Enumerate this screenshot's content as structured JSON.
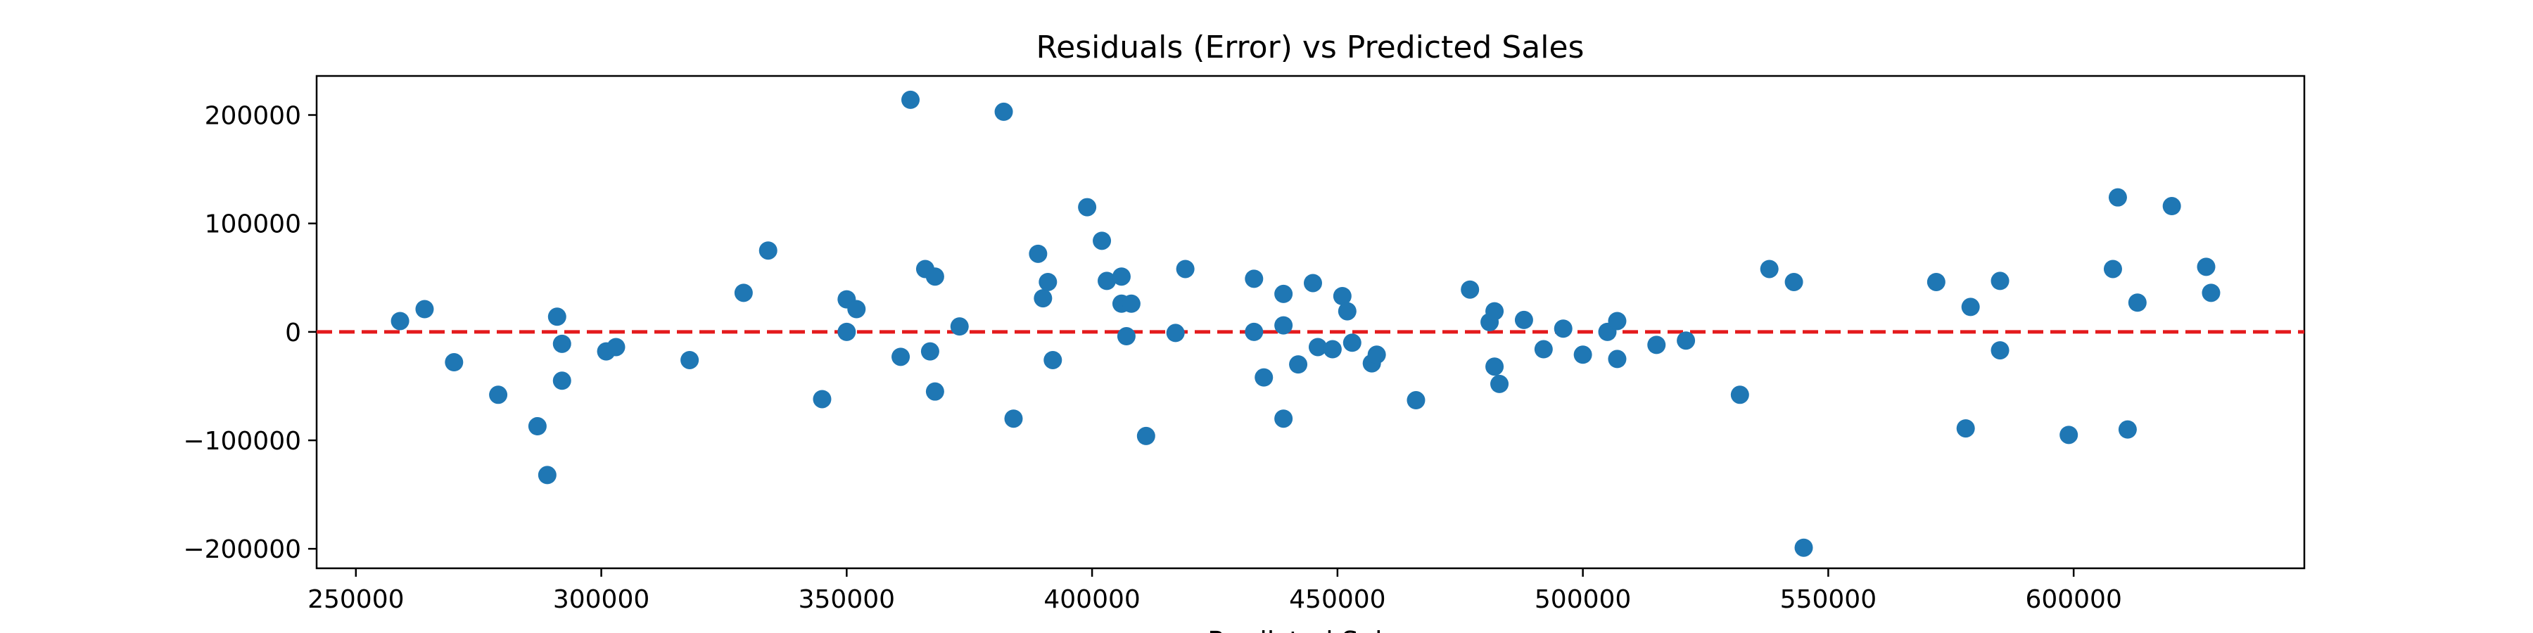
{
  "chart_data": {
    "type": "scatter",
    "title": "Residuals (Error) vs Predicted Sales",
    "xlabel": "Predicted Sales",
    "ylabel": "",
    "xlim": [
      242000,
      647000
    ],
    "ylim": [
      -218000,
      236000
    ],
    "x_ticks": [
      250000,
      300000,
      350000,
      400000,
      450000,
      500000,
      550000,
      600000
    ],
    "x_tick_labels": [
      "250000",
      "300000",
      "350000",
      "400000",
      "450000",
      "500000",
      "550000",
      "600000"
    ],
    "y_ticks": [
      200000,
      100000,
      0,
      -100000,
      -200000
    ],
    "y_tick_labels": [
      "200000",
      "100000",
      "0",
      "−100000",
      "−200000"
    ],
    "grid": false,
    "reference_line": {
      "y": 0,
      "color": "#e41a1c",
      "style": "dashed"
    },
    "marker_color": "#1f77b4",
    "points": [
      {
        "x": 259000,
        "y": 10000
      },
      {
        "x": 264000,
        "y": 21000
      },
      {
        "x": 270000,
        "y": -28000
      },
      {
        "x": 279000,
        "y": -58000
      },
      {
        "x": 287000,
        "y": -87000
      },
      {
        "x": 289000,
        "y": -132000
      },
      {
        "x": 291000,
        "y": 14000
      },
      {
        "x": 292000,
        "y": -11000
      },
      {
        "x": 292000,
        "y": -45000
      },
      {
        "x": 301000,
        "y": -18000
      },
      {
        "x": 303000,
        "y": -14000
      },
      {
        "x": 318000,
        "y": -26000
      },
      {
        "x": 329000,
        "y": 36000
      },
      {
        "x": 334000,
        "y": 75000
      },
      {
        "x": 345000,
        "y": -62000
      },
      {
        "x": 350000,
        "y": 0
      },
      {
        "x": 350000,
        "y": 30000
      },
      {
        "x": 352000,
        "y": 21000
      },
      {
        "x": 361000,
        "y": -23000
      },
      {
        "x": 363000,
        "y": 214000
      },
      {
        "x": 366000,
        "y": 58000
      },
      {
        "x": 367000,
        "y": -18000
      },
      {
        "x": 368000,
        "y": 51000
      },
      {
        "x": 368000,
        "y": -55000
      },
      {
        "x": 373000,
        "y": 5000
      },
      {
        "x": 382000,
        "y": 203000
      },
      {
        "x": 384000,
        "y": -80000
      },
      {
        "x": 389000,
        "y": 72000
      },
      {
        "x": 390000,
        "y": 31000
      },
      {
        "x": 391000,
        "y": 46000
      },
      {
        "x": 392000,
        "y": -26000
      },
      {
        "x": 399000,
        "y": 115000
      },
      {
        "x": 402000,
        "y": 84000
      },
      {
        "x": 403000,
        "y": 47000
      },
      {
        "x": 406000,
        "y": 51000
      },
      {
        "x": 406000,
        "y": 26000
      },
      {
        "x": 407000,
        "y": -4000
      },
      {
        "x": 408000,
        "y": 26000
      },
      {
        "x": 411000,
        "y": -96000
      },
      {
        "x": 417000,
        "y": -1000
      },
      {
        "x": 419000,
        "y": 58000
      },
      {
        "x": 433000,
        "y": 0
      },
      {
        "x": 433000,
        "y": 49000
      },
      {
        "x": 435000,
        "y": -42000
      },
      {
        "x": 439000,
        "y": 35000
      },
      {
        "x": 439000,
        "y": 6000
      },
      {
        "x": 439000,
        "y": -80000
      },
      {
        "x": 442000,
        "y": -30000
      },
      {
        "x": 445000,
        "y": 45000
      },
      {
        "x": 446000,
        "y": -14000
      },
      {
        "x": 449000,
        "y": -16000
      },
      {
        "x": 451000,
        "y": 33000
      },
      {
        "x": 452000,
        "y": 19000
      },
      {
        "x": 453000,
        "y": -10000
      },
      {
        "x": 457000,
        "y": -29000
      },
      {
        "x": 458000,
        "y": -21000
      },
      {
        "x": 466000,
        "y": -63000
      },
      {
        "x": 477000,
        "y": 39000
      },
      {
        "x": 481000,
        "y": 9000
      },
      {
        "x": 482000,
        "y": -32000
      },
      {
        "x": 482000,
        "y": 19000
      },
      {
        "x": 483000,
        "y": -48000
      },
      {
        "x": 488000,
        "y": 11000
      },
      {
        "x": 492000,
        "y": -16000
      },
      {
        "x": 496000,
        "y": 3000
      },
      {
        "x": 500000,
        "y": -21000
      },
      {
        "x": 505000,
        "y": 0
      },
      {
        "x": 507000,
        "y": -25000
      },
      {
        "x": 507000,
        "y": 10000
      },
      {
        "x": 515000,
        "y": -12000
      },
      {
        "x": 521000,
        "y": -8000
      },
      {
        "x": 532000,
        "y": -58000
      },
      {
        "x": 538000,
        "y": 58000
      },
      {
        "x": 543000,
        "y": 46000
      },
      {
        "x": 545000,
        "y": -199000
      },
      {
        "x": 572000,
        "y": 46000
      },
      {
        "x": 578000,
        "y": -89000
      },
      {
        "x": 579000,
        "y": 23000
      },
      {
        "x": 585000,
        "y": 47000
      },
      {
        "x": 585000,
        "y": -17000
      },
      {
        "x": 599000,
        "y": -95000
      },
      {
        "x": 608000,
        "y": 58000
      },
      {
        "x": 609000,
        "y": 124000
      },
      {
        "x": 611000,
        "y": -90000
      },
      {
        "x": 613000,
        "y": 27000
      },
      {
        "x": 620000,
        "y": 116000
      },
      {
        "x": 627000,
        "y": 60000
      },
      {
        "x": 628000,
        "y": 36000
      }
    ]
  }
}
